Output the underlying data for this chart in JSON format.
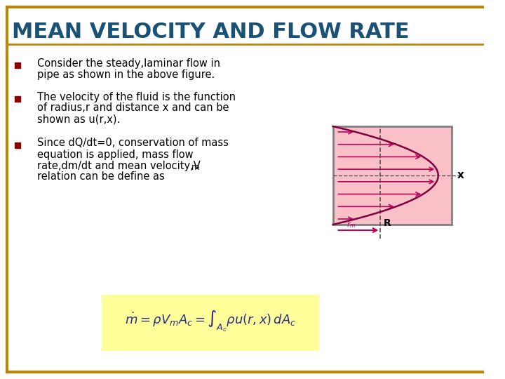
{
  "title": "MEAN VELOCITY AND FLOW RATE",
  "title_color": "#1a5276",
  "title_fontsize": 22,
  "bg_color": "#ffffff",
  "border_color": "#b8860b",
  "bullet_color": "#8b0000",
  "text_color": "#000000",
  "bullet1_line1": "Consider the steady,laminar flow in",
  "bullet1_line2": "pipe as shown in the above figure.",
  "bullet2_line1": "The velocity of the fluid is the function",
  "bullet2_line2": "of radius,r and distance x and can be",
  "bullet2_line3": "shown as u(r,x).",
  "bullet3_line1": "Since dQ/dt=0, conservation of mass",
  "bullet3_line2": "equation is applied, mass flow",
  "bullet3_line3": "rate,dm/dt and mean velocity,V",
  "bullet3_line3b": "m",
  "bullet3_line4": "relation can be define as",
  "formula_bg": "#ffff99",
  "pipe_fill": "#f9c0c8",
  "pipe_border": "#808080",
  "arrow_color": "#c0005a",
  "dashed_color": "#555555",
  "curve_color": "#800040"
}
